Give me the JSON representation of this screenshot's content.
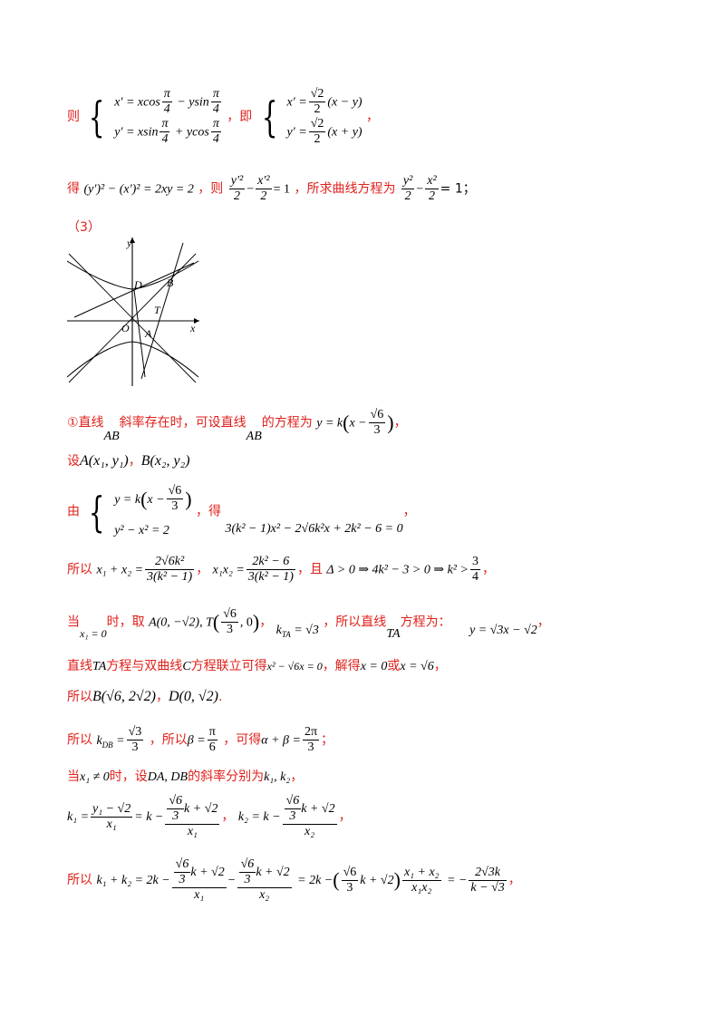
{
  "lines": {
    "l1_ze": "则",
    "l1_sys1a": "x′ = xcos",
    "l1_sys1b": " − ysin",
    "l1_sys2a": "y′ = xsin",
    "l1_sys2b": " + ycos",
    "pi": "π",
    "four": "4",
    "l1_comma": "，",
    "l1_ji": "即",
    "l1_r1a": "x′ =",
    "l1_r1b": "(x − y)",
    "l1_r2a": "y′ =",
    "l1_r2b": "(x + y)",
    "sqrt2": "√2",
    "two": "2",
    "l1_end": "，",
    "l2_de": "得",
    "l2_eq": "(y′)² − (x′)² = 2xy = 2",
    "l2_ze": "，则",
    "l2_y2": "y′²",
    "l2_x2": "x′²",
    "l2_eq1": "= 1",
    "l2_text": "，所求曲线方程为",
    "l2_yy": "y²",
    "l2_xx": "x²",
    "l2_end": "= 1；",
    "l3": "（3）",
    "l4_a": "①直线",
    "l4_ab": "AB",
    "l4_b": "斜率存在时，可设直线",
    "l4_ab2": "AB",
    "l4_c": "的方程为",
    "l4_eq_a": "y = k",
    "l4_eq_x": "x −",
    "sqrt6": "√6",
    "three": "3",
    "l4_end": "，",
    "l5_a": "设",
    "l5_A": "A(x₁, y₁)",
    "l5_sep": "，",
    "l5_B": "B(x₂, y₂)",
    "l6_you": "由",
    "l6_s1": "y = k",
    "l6_s1x": "x −",
    "l6_s2": "y² − x² = 2",
    "l6_de": "，得",
    "l6_eq": "3(k² − 1)x² − 2√6k²x + 2k² − 6 = 0",
    "l6_end": "，",
    "l7_a": "所以",
    "l7_s": "x₁ + x₂ =",
    "l7_n1": "2√6k²",
    "l7_d1": "3(k² − 1)",
    "l7_sep": "，",
    "l7_p": "x₁x₂ =",
    "l7_n2": "2k² − 6",
    "l7_d2": "3(k² − 1)",
    "l7_qie": "，且",
    "l7_cond": "Δ > 0 ⇒ 4k² − 3 > 0 ⇒ k² >",
    "l7_n3": "3",
    "l7_d3": "4",
    "l7_end": "，",
    "l8_dang": "当",
    "l8_x1": "x₁ = 0",
    "l8_shi": "时，取",
    "l8_A": "A(0, −√2), T",
    "l8_T2": ", 0",
    "l8_comma": "，",
    "l8_k": "k",
    "l8_ksub": "TA",
    "l8_keq": " = √3",
    "l8_text": "，所以直线",
    "l8_ta": "TA",
    "l8_fc": "方程为：",
    "l8_eq": "y = √3x − √2",
    "l8_end": "，",
    "l9_a": "直线",
    "l9_ta": "TA",
    "l9_b": "方程与双曲线",
    "l9_c": "C",
    "l9_d": "方程联立可得",
    "l9_eq": "x² − √6x = 0",
    "l9_e": "，解得",
    "l9_x0": "x = 0",
    "l9_or": "或",
    "l9_x6": "x = √6",
    "l9_end": "，",
    "l10_a": "所以",
    "l10_B": "B(√6, 2√2)",
    "l10_sep": "，",
    "l10_D": "D(0, √2)",
    "l10_end": ".",
    "l11_a": "所以",
    "l11_k": "k",
    "l11_ksub": "DB",
    "l11_eq": " =",
    "l11_num": "√3",
    "l11_den": "3",
    "l11_b": "，所以",
    "l11_beta": "β =",
    "l11_bn": "π",
    "l11_bd": "6",
    "l11_c": "，可得",
    "l11_ab": "α + β =",
    "l11_abn": "2π",
    "l11_abd": "3",
    "l11_end": "；",
    "l12_a": "当",
    "l12_x": "x₁ ≠ 0",
    "l12_b": "时，设",
    "l12_da": "DA, DB",
    "l12_c": "的斜率分别为",
    "l12_k": "k₁, k₂",
    "l12_end": "，",
    "l13_k1": "k₁ =",
    "l13_n1": "y₁ − √2",
    "l13_d1": "x₁",
    "l13_eqk": "= k −",
    "l13_kp": "k + √2",
    "l13_d2": "x₁",
    "l13_sep": "，",
    "l13_k2": "k₂ = k −",
    "l13_d3": "x₂",
    "l13_end": "，",
    "l14_a": "所以",
    "l14_eq1": "k₁ + k₂ = 2k −",
    "l14_minus": "−",
    "l14_d1": "x₁",
    "l14_d2": "x₂",
    "l14_eq2": "= 2k −",
    "l14_kp": "k + √2",
    "l14_n3": "x₁ + x₂",
    "l14_d3": "x₁x₂",
    "l14_eq3": "= −",
    "l14_n4": "2√3k",
    "l14_d4": "k − √3",
    "l14_end": "，"
  },
  "figure": {
    "label_y": "y",
    "label_x": "x",
    "label_O": "O",
    "label_D": "D",
    "label_B": "B",
    "label_T": "T",
    "label_A": "A"
  }
}
